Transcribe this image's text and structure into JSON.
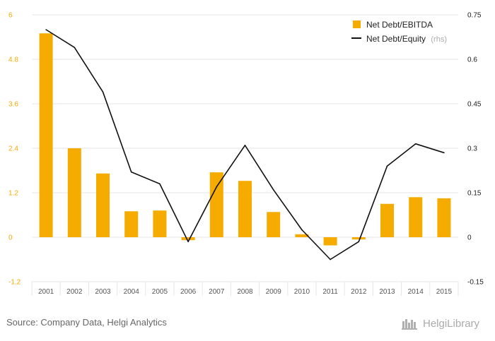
{
  "chart_data": {
    "type": "bar+line",
    "categories": [
      "2001",
      "2002",
      "2003",
      "2004",
      "2005",
      "2006",
      "2007",
      "2008",
      "2009",
      "2010",
      "2011",
      "2012",
      "2013",
      "2014",
      "2015"
    ],
    "series": [
      {
        "name": "Net Debt/EBITDA",
        "type": "bar",
        "axis": "left",
        "color": "#f5ab00",
        "values": [
          5.5,
          2.4,
          1.72,
          0.7,
          0.72,
          -0.08,
          1.75,
          1.52,
          0.68,
          0.08,
          -0.22,
          -0.06,
          0.9,
          1.08,
          1.05
        ]
      },
      {
        "name": "Net Debt/Equity",
        "legend_suffix": "(rhs)",
        "type": "line",
        "axis": "right",
        "color": "#111111",
        "values": [
          0.7,
          0.64,
          0.49,
          0.22,
          0.18,
          -0.015,
          0.17,
          0.31,
          0.16,
          0.025,
          -0.075,
          -0.015,
          0.24,
          0.315,
          0.285
        ]
      }
    ],
    "y_left": {
      "min": -1.2,
      "max": 6,
      "ticks": [
        "-1.2",
        "0",
        "1.2",
        "2.4",
        "3.6",
        "4.8",
        "6"
      ],
      "tick_values": [
        -1.2,
        0,
        1.2,
        2.4,
        3.6,
        4.8,
        6
      ],
      "color": "#f5ab00"
    },
    "y_right": {
      "min": -0.15,
      "max": 0.75,
      "ticks": [
        "-0.15",
        "0",
        "0.15",
        "0.3",
        "0.45",
        "0.6",
        "0.75"
      ],
      "tick_values": [
        -0.15,
        0,
        0.15,
        0.3,
        0.45,
        0.6,
        0.75
      ]
    },
    "grid": true,
    "legend_position": "top-right"
  },
  "footer": {
    "source": "Source: Company Data, Helgi Analytics",
    "brand": "HelgiLibrary",
    "brand_icon": "library-books-icon"
  }
}
